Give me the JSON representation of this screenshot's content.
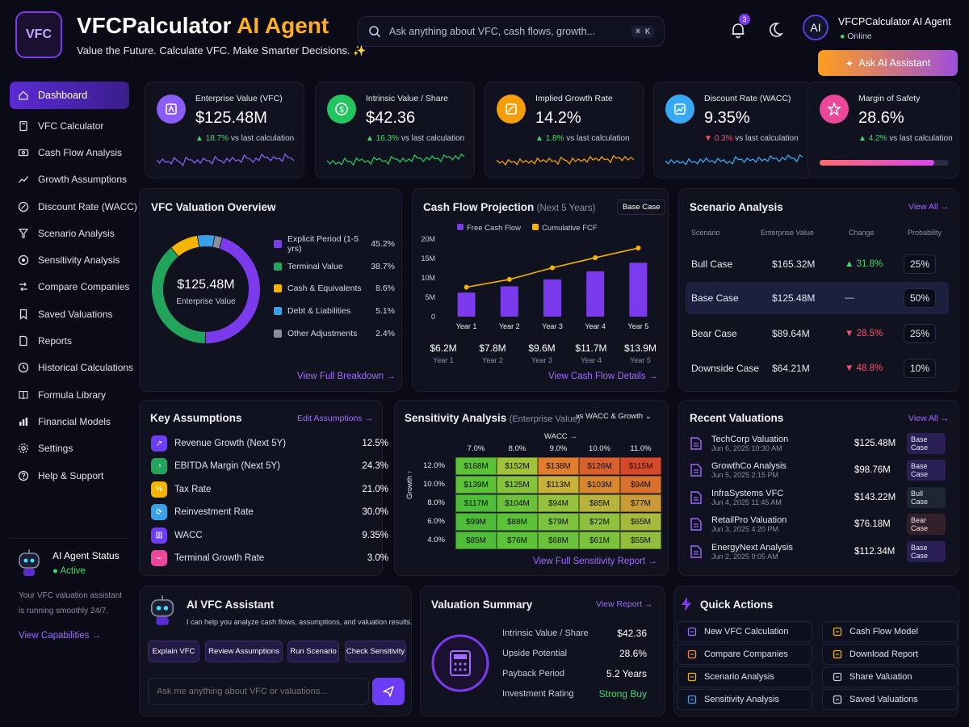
{
  "header": {
    "logo_text": "VFC",
    "brand_main": "VFCPalculator",
    "brand_accent": "AI Agent",
    "tagline": "Value the Future. Calculate VFC. Make Smarter Decisions. ✨",
    "search_placeholder": "Ask anything about VFC, cash flows, growth...",
    "search_shortcut": "⌘ K",
    "notif_count": "3",
    "user_avatar": "AI",
    "user_name": "VFCPCalculator AI Agent",
    "user_status": "Online",
    "ask_button": "Ask AI Assistant"
  },
  "sidebar": {
    "items": [
      {
        "label": "Dashboard",
        "icon": "home-icon"
      },
      {
        "label": "VFC Calculator",
        "icon": "calculator-icon"
      },
      {
        "label": "Cash Flow Analysis",
        "icon": "cashflow-icon"
      },
      {
        "label": "Growth Assumptions",
        "icon": "growth-icon"
      },
      {
        "label": "Discount Rate (WACC)",
        "icon": "percent-icon"
      },
      {
        "label": "Scenario Analysis",
        "icon": "scenario-icon"
      },
      {
        "label": "Sensitivity Analysis",
        "icon": "sensitivity-icon"
      },
      {
        "label": "Compare Companies",
        "icon": "compare-icon"
      },
      {
        "label": "Saved Valuations",
        "icon": "bookmark-icon"
      },
      {
        "label": "Reports",
        "icon": "report-icon"
      },
      {
        "label": "Historical Calculations",
        "icon": "history-icon"
      },
      {
        "label": "Formula Library",
        "icon": "book-icon"
      },
      {
        "label": "Financial Models",
        "icon": "model-icon"
      },
      {
        "label": "Settings",
        "icon": "gear-icon"
      },
      {
        "label": "Help & Support",
        "icon": "help-icon"
      }
    ],
    "status": {
      "title": "AI Agent Status",
      "state": "Active",
      "desc_1": "Your VFC valuation assistant",
      "desc_2": "is running smoothly 24/7.",
      "link": "View Capabilities →"
    }
  },
  "kpis": [
    {
      "label": "Enterprise Value (VFC)",
      "value": "$125.48M",
      "change": "18.7%",
      "dir": "up",
      "suffix": "vs last calculation",
      "color": "#8b5cf6"
    },
    {
      "label": "Intrinsic Value / Share",
      "value": "$42.36",
      "change": "16.3%",
      "dir": "up",
      "suffix": "vs last calculation",
      "color": "#22c55e"
    },
    {
      "label": "Implied Growth Rate",
      "value": "14.2%",
      "change": "1.8%",
      "dir": "up",
      "suffix": "vs last calculation",
      "color": "#f59e0b"
    },
    {
      "label": "Discount Rate (WACC)",
      "value": "9.35%",
      "change": "0.3%",
      "dir": "down",
      "suffix": "vs last calculation",
      "color": "#38a9f5"
    },
    {
      "label": "Margin of Safety",
      "value": "28.6%",
      "change": "4.2%",
      "dir": "up",
      "suffix": "vs last calculation",
      "color": "#ec4899",
      "progress": 0.286
    }
  ],
  "overview": {
    "title": "VFC Valuation Overview",
    "center_value": "$125.48M",
    "center_label": "Enterprise Value",
    "segments": [
      {
        "label": "Explicit Period (1-5 yrs)",
        "pct": "45.2%",
        "value": 45.2,
        "color": "#7c3aed"
      },
      {
        "label": "Terminal Value",
        "pct": "38.7%",
        "value": 38.7,
        "color": "#22a45d"
      },
      {
        "label": "Cash & Equivalents",
        "pct": "8.6%",
        "value": 8.6,
        "color": "#f5b400"
      },
      {
        "label": "Debt & Liabilities",
        "pct": "5.1%",
        "value": 5.1,
        "color": "#3aa0e8"
      },
      {
        "label": "Other Adjustments",
        "pct": "2.4%",
        "value": 2.4,
        "color": "#8a8d9e"
      }
    ],
    "link": "View Full Breakdown →"
  },
  "cashflow": {
    "title": "Cash Flow Projection",
    "subtitle": "(Next 5 Years)",
    "case_label": "Base Case",
    "link": "View Cash Flow Details →",
    "values": [
      {
        "value": "$6.2M",
        "year": "Year 1"
      },
      {
        "value": "$7.8M",
        "year": "Year 2"
      },
      {
        "value": "$9.6M",
        "year": "Year 3"
      },
      {
        "value": "$11.7M",
        "year": "Year 4"
      },
      {
        "value": "$13.9M",
        "year": "Year 5"
      }
    ]
  },
  "chart_data": {
    "type": "bar",
    "categories": [
      "Year 1",
      "Year 2",
      "Year 3",
      "Year 4",
      "Year 5"
    ],
    "series": [
      {
        "name": "Free Cash Flow",
        "type": "bar",
        "values": [
          6.2,
          7.8,
          9.6,
          11.7,
          13.9
        ],
        "color": "#7c3aed"
      },
      {
        "name": "Cumulative FCF",
        "type": "line",
        "values": [
          7.6,
          9.6,
          12.6,
          15.2,
          17.7
        ],
        "color": "#f5b400"
      }
    ],
    "yticks": [
      "0",
      "5M",
      "10M",
      "15M",
      "20M"
    ],
    "ylim": [
      0,
      20
    ]
  },
  "scenario": {
    "title": "Scenario Analysis",
    "link": "View All →",
    "headers": [
      "Scenario",
      "Enterprise Value",
      "Change",
      "Probability"
    ],
    "rows": [
      {
        "name": "Bull Case",
        "value": "$165.32M",
        "change": "▲ 31.8%",
        "prob": "25%"
      },
      {
        "name": "Base Case",
        "value": "$125.48M",
        "change": "—",
        "prob": "50%"
      },
      {
        "name": "Bear Case",
        "value": "$89.64M",
        "change": "▼ 28.5%",
        "prob": "25%"
      },
      {
        "name": "Downside Case",
        "value": "$64.21M",
        "change": "▼ 48.8%",
        "prob": "10%"
      }
    ]
  },
  "assumptions": {
    "title": "Key Assumptions",
    "link": "Edit Assumptions →",
    "rows": [
      {
        "label": "Revenue Growth (Next 5Y)",
        "value": "12.5%",
        "color": "#6d3df5"
      },
      {
        "label": "EBITDA Margin (Next 5Y)",
        "value": "24.3%",
        "color": "#22a45d"
      },
      {
        "label": "Tax Rate",
        "value": "21.0%",
        "color": "#f5b400"
      },
      {
        "label": "Reinvestment Rate",
        "value": "30.0%",
        "color": "#3aa0e8"
      },
      {
        "label": "WACC",
        "value": "9.35%",
        "color": "#6d3df5"
      },
      {
        "label": "Terminal Growth Rate",
        "value": "3.0%",
        "color": "#ec4899"
      }
    ]
  },
  "sensitivity": {
    "title": "Sensitivity Analysis",
    "subtitle": "(Enterprise Value)",
    "selector": "vs WACC & Growth",
    "col_title": "WACC →",
    "row_title": "Growth ↑",
    "cols": [
      "7.0%",
      "8.0%",
      "9.0%",
      "10.0%",
      "11.0%"
    ],
    "rows": [
      "12.0%",
      "10.0%",
      "8.0%",
      "6.0%",
      "4.0%"
    ],
    "cells": [
      [
        "$168M",
        "$152M",
        "$138M",
        "$126M",
        "$115M"
      ],
      [
        "$139M",
        "$125M",
        "$113M",
        "$103M",
        "$94M"
      ],
      [
        "$117M",
        "$104M",
        "$94M",
        "$85M",
        "$77M"
      ],
      [
        "$99M",
        "$88M",
        "$79M",
        "$72M",
        "$65M"
      ],
      [
        "$85M",
        "$76M",
        "$68M",
        "$61M",
        "$55M"
      ]
    ],
    "colors": [
      [
        "#5cc236",
        "#a0c238",
        "#e07e2e",
        "#d9602c",
        "#d44a2a"
      ],
      [
        "#5cc236",
        "#86c23a",
        "#c9b23a",
        "#d9872e",
        "#d9702c"
      ],
      [
        "#4fbd38",
        "#6cc13a",
        "#93c23c",
        "#b8b33c",
        "#c99a36"
      ],
      [
        "#4fbd38",
        "#5cc236",
        "#7dc23c",
        "#8fbf3c",
        "#a7b93a"
      ],
      [
        "#4fbd38",
        "#5cc236",
        "#6cc13a",
        "#7dc23c",
        "#8fbf3c"
      ]
    ],
    "link": "View Full Sensitivity Report →"
  },
  "recent": {
    "title": "Recent Valuations",
    "link": "View All →",
    "rows": [
      {
        "name": "TechCorp Valuation",
        "date": "Jun 6, 2025 10:30 AM",
        "value": "$125.48M",
        "case": "Base Case"
      },
      {
        "name": "GrowthCo Analysis",
        "date": "Jun 5, 2025 2:15 PM",
        "value": "$98.76M",
        "case": "Base Case"
      },
      {
        "name": "InfraSystems VFC",
        "date": "Jun 4, 2025 11:45 AM",
        "value": "$143.22M",
        "case": "Bull Case"
      },
      {
        "name": "RetailPro Valuation",
        "date": "Jun 3, 2025 4:20 PM",
        "value": "$76.18M",
        "case": "Bear Case"
      },
      {
        "name": "EnergyNext Analysis",
        "date": "Jun 2, 2025 9:05 AM",
        "value": "$112.34M",
        "case": "Base Case"
      }
    ]
  },
  "assistant": {
    "title": "AI VFC Assistant",
    "desc": "I can help you analyze cash flows, assumptions, and valuation results.",
    "chips": [
      "Explain VFC",
      "Review Assumptions",
      "Run Scenario",
      "Check Sensitivity"
    ],
    "input_placeholder": "Ask me anything about VFC or valuations..."
  },
  "summary": {
    "title": "Valuation Summary",
    "link": "View Report →",
    "rows": [
      {
        "label": "Intrinsic Value / Share",
        "value": "$42.36"
      },
      {
        "label": "Upside Potential",
        "value": "28.6%"
      },
      {
        "label": "Payback Period",
        "value": "5.2 Years"
      },
      {
        "label": "Investment Rating",
        "value": "Strong Buy"
      }
    ]
  },
  "quick": {
    "title": "Quick Actions",
    "items": [
      {
        "label": "New VFC Calculation",
        "color": "#a06bff"
      },
      {
        "label": "Cash Flow Model",
        "color": "#f5b400"
      },
      {
        "label": "Compare Companies",
        "color": "#ff8a3d"
      },
      {
        "label": "Download Report",
        "color": "#f5b400"
      },
      {
        "label": "Scenario Analysis",
        "color": "#f5b400"
      },
      {
        "label": "Share Valuation",
        "color": "#c8cbe0"
      },
      {
        "label": "Sensitivity Analysis",
        "color": "#3aa0e8"
      },
      {
        "label": "Saved Valuations",
        "color": "#c8cbe0"
      }
    ]
  }
}
